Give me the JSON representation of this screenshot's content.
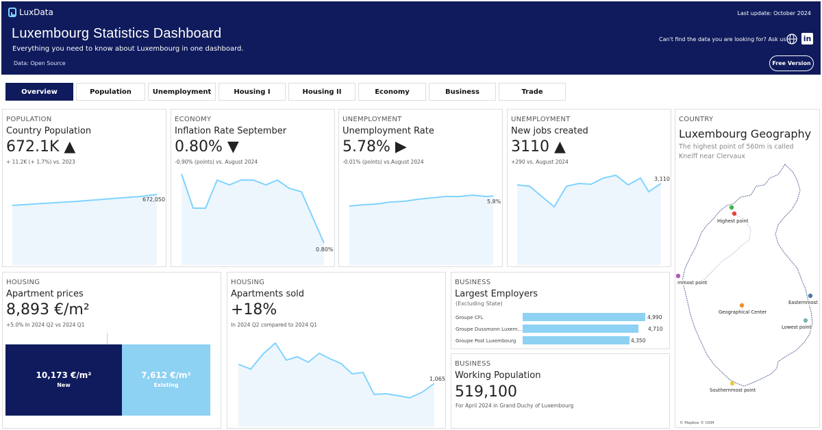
{
  "header": {
    "brand": "LuxData",
    "last_update": "Last update: October 2024",
    "title": "Luxembourg Statistics Dashboard",
    "subtitle": "Everything you need to know about Luxembourg in one dashboard.",
    "source": "Data: Open Source",
    "ask": "Can't find the data you are looking for? Ask us!",
    "linkedin_label": "in",
    "free_button": "Free Version"
  },
  "tabs": [
    {
      "label": "Overview",
      "active": true
    },
    {
      "label": "Population"
    },
    {
      "label": "Unemployment"
    },
    {
      "label": "Housing I"
    },
    {
      "label": "Housing II"
    },
    {
      "label": "Economy"
    },
    {
      "label": "Business"
    },
    {
      "label": "Trade"
    }
  ],
  "cards": {
    "population": {
      "category": "POPULATION",
      "title": "Country Population",
      "value": "672.1K",
      "arrow": "▲",
      "note": "+ 11.2K (+ 1.7%) vs. 2023",
      "end_label": "672,050"
    },
    "inflation": {
      "category": "ECONOMY",
      "title": "Inflation Rate September",
      "value": "0.80%",
      "arrow": "▼",
      "note": "-0.90% (points) vs. August 2024",
      "end_label": "0.80%"
    },
    "unemployment": {
      "category": "UNEMPLOYMENT",
      "title": "Unemployment Rate",
      "value": "5.78%",
      "arrow": "▶",
      "note": "-0.01% (points) vs.August 2024",
      "end_label": "5.8%"
    },
    "jobs": {
      "category": "UNEMPLOYMENT",
      "title": "New jobs created",
      "value": "3110",
      "arrow": "▲",
      "note": "+290 vs. August 2024",
      "end_label": "3,110"
    },
    "geography": {
      "category": "COUNTRY",
      "title": "Luxembourg Geography",
      "desc": "The highest point of 560m is called Kneiff near Clervaux",
      "points": {
        "highest": "Highest point",
        "western": "rnmost point",
        "center": "Geographical Center",
        "eastern": "Easternmost",
        "lowest": "Lowest point",
        "southern": "Southernmost point"
      },
      "credit": "© Mapbox  © OSM"
    },
    "apartment_prices": {
      "category": "HOUSING",
      "title": "Apartment prices",
      "value": "8,893 €/m²",
      "note": "+5.0% In 2024 Q2 vs 2024 Q1",
      "new_value": "10,173 €/m²",
      "new_label": "New",
      "existing_value": "7,612 €/m²",
      "existing_label": "Existing"
    },
    "apartments_sold": {
      "category": "HOUSING",
      "title": "Apartments sold",
      "value": "+18%",
      "note": "In 2024 Q2 compared to 2024 Q1",
      "end_label": "1,065"
    },
    "employers": {
      "category": "BUSINESS",
      "title": "Largest Employers",
      "subtitle": "(Excluding State)",
      "rows": [
        {
          "name": "Groupe CFL",
          "value": 4990,
          "label": "4,990"
        },
        {
          "name": "Groupe Dussmann Luxem...",
          "value": 4710,
          "label": "4,710"
        },
        {
          "name": "Groupe Post Luxembourg",
          "value": 4350,
          "label": "4,350"
        }
      ]
    },
    "working": {
      "category": "BUSINESS",
      "title": "Working Population",
      "value": "519,100",
      "note": "For April 2024 in Grand Duchy of Luxembourg"
    }
  },
  "colors": {
    "navy": "#0f1b5c",
    "accent": "#7fd3ff",
    "fill": "#eef6fd"
  }
}
